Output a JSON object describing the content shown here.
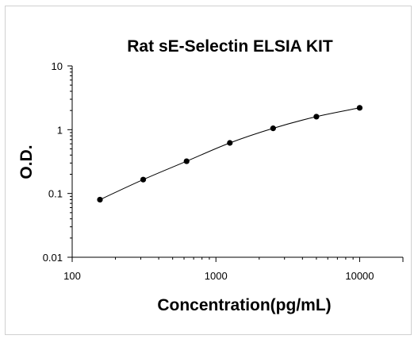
{
  "chart_data": {
    "type": "scatter",
    "title": "Rat sE-Selectin ELSIA KIT",
    "xlabel": "Concentration(pg/mL)",
    "ylabel": "O.D.",
    "x_scale": "log",
    "y_scale": "log",
    "xlim": [
      100,
      20000
    ],
    "ylim": [
      0.01,
      10
    ],
    "x_ticks": [
      "100",
      "1000",
      "10000"
    ],
    "y_ticks": [
      "10",
      "1",
      "0.1",
      "0.01"
    ],
    "grid": false,
    "legend": "none",
    "fit_line": true,
    "colors": {
      "marker": "#000000",
      "line": "#000000"
    },
    "series": [
      {
        "x": [
          156,
          312,
          625,
          1250,
          2500,
          5000,
          10000
        ],
        "y": [
          0.08,
          0.165,
          0.32,
          0.62,
          1.05,
          1.6,
          2.2
        ]
      }
    ]
  }
}
